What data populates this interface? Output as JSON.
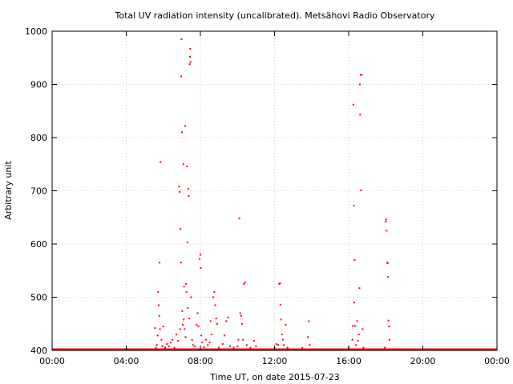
{
  "chart_data": {
    "type": "scatter",
    "title": "Total UV radiation intensity (uncalibrated). Metsähovi Radio Observatory",
    "xlabel": "Time UT, on date 2015-07-23",
    "ylabel": "Arbitrary unit",
    "xlim": [
      "00:00",
      "24:00"
    ],
    "ylim": [
      400,
      1000
    ],
    "x_ticks": [
      "00:00",
      "04:00",
      "08:00",
      "12:00",
      "16:00",
      "20:00",
      "00:00"
    ],
    "y_ticks": [
      "400",
      "500",
      "600",
      "700",
      "800",
      "900",
      "1000"
    ],
    "grid": true,
    "marker_color": "#ff0000",
    "x_unit": "hours UT",
    "baseline": {
      "value": 400,
      "from_hour": 0,
      "to_hour": 24
    },
    "points": [
      [
        5.55,
        442
      ],
      [
        5.6,
        405
      ],
      [
        5.65,
        410
      ],
      [
        5.7,
        428
      ],
      [
        5.72,
        510
      ],
      [
        5.75,
        485
      ],
      [
        5.78,
        465
      ],
      [
        5.8,
        565
      ],
      [
        5.82,
        440
      ],
      [
        5.85,
        754
      ],
      [
        5.9,
        420
      ],
      [
        5.95,
        408
      ],
      [
        6.0,
        445
      ],
      [
        6.1,
        405
      ],
      [
        6.2,
        412
      ],
      [
        6.3,
        408
      ],
      [
        6.4,
        415
      ],
      [
        6.5,
        420
      ],
      [
        6.6,
        405
      ],
      [
        6.7,
        430
      ],
      [
        6.8,
        418
      ],
      [
        6.85,
        708
      ],
      [
        6.88,
        698
      ],
      [
        6.9,
        440
      ],
      [
        6.92,
        628
      ],
      [
        6.95,
        565
      ],
      [
        6.97,
        915
      ],
      [
        6.98,
        985
      ],
      [
        7.0,
        810
      ],
      [
        7.02,
        474
      ],
      [
        7.05,
        448
      ],
      [
        7.08,
        750
      ],
      [
        7.1,
        458
      ],
      [
        7.12,
        520
      ],
      [
        7.15,
        440
      ],
      [
        7.18,
        822
      ],
      [
        7.2,
        425
      ],
      [
        7.22,
        525
      ],
      [
        7.25,
        510
      ],
      [
        7.28,
        746
      ],
      [
        7.3,
        603
      ],
      [
        7.32,
        480
      ],
      [
        7.35,
        704
      ],
      [
        7.37,
        690
      ],
      [
        7.4,
        460
      ],
      [
        7.42,
        938
      ],
      [
        7.44,
        952
      ],
      [
        7.45,
        967
      ],
      [
        7.47,
        942
      ],
      [
        7.5,
        500
      ],
      [
        7.55,
        420
      ],
      [
        7.6,
        410
      ],
      [
        7.7,
        408
      ],
      [
        7.8,
        448
      ],
      [
        7.85,
        470
      ],
      [
        7.9,
        445
      ],
      [
        7.95,
        572
      ],
      [
        8.0,
        580
      ],
      [
        8.02,
        555
      ],
      [
        8.05,
        428
      ],
      [
        8.1,
        415
      ],
      [
        8.2,
        406
      ],
      [
        8.3,
        420
      ],
      [
        8.4,
        410
      ],
      [
        8.5,
        415
      ],
      [
        8.55,
        455
      ],
      [
        8.6,
        430
      ],
      [
        8.7,
        500
      ],
      [
        8.75,
        510
      ],
      [
        8.8,
        485
      ],
      [
        8.85,
        460
      ],
      [
        8.9,
        450
      ],
      [
        9.0,
        405
      ],
      [
        9.2,
        412
      ],
      [
        9.3,
        428
      ],
      [
        9.4,
        455
      ],
      [
        9.5,
        462
      ],
      [
        9.6,
        408
      ],
      [
        9.8,
        405
      ],
      [
        10.0,
        408
      ],
      [
        10.05,
        420
      ],
      [
        10.1,
        648
      ],
      [
        10.15,
        470
      ],
      [
        10.2,
        465
      ],
      [
        10.25,
        450
      ],
      [
        10.3,
        420
      ],
      [
        10.35,
        525
      ],
      [
        10.4,
        528
      ],
      [
        10.5,
        410
      ],
      [
        10.7,
        405
      ],
      [
        10.9,
        418
      ],
      [
        11.0,
        408
      ],
      [
        12.0,
        405
      ],
      [
        12.1,
        412
      ],
      [
        12.2,
        410
      ],
      [
        12.25,
        525
      ],
      [
        12.3,
        526
      ],
      [
        12.32,
        486
      ],
      [
        12.35,
        458
      ],
      [
        12.4,
        430
      ],
      [
        12.45,
        420
      ],
      [
        12.5,
        410
      ],
      [
        12.6,
        448
      ],
      [
        12.7,
        405
      ],
      [
        13.5,
        405
      ],
      [
        13.8,
        425
      ],
      [
        13.85,
        455
      ],
      [
        13.9,
        410
      ],
      [
        16.0,
        405
      ],
      [
        16.2,
        420
      ],
      [
        16.22,
        446
      ],
      [
        16.25,
        862
      ],
      [
        16.28,
        672
      ],
      [
        16.3,
        490
      ],
      [
        16.32,
        570
      ],
      [
        16.35,
        446
      ],
      [
        16.4,
        410
      ],
      [
        16.45,
        455
      ],
      [
        16.5,
        418
      ],
      [
        16.55,
        430
      ],
      [
        16.58,
        517
      ],
      [
        16.6,
        900
      ],
      [
        16.62,
        843
      ],
      [
        16.65,
        918
      ],
      [
        16.67,
        701
      ],
      [
        16.7,
        918
      ],
      [
        16.75,
        440
      ],
      [
        16.8,
        405
      ],
      [
        17.95,
        405
      ],
      [
        18.0,
        642
      ],
      [
        18.02,
        646
      ],
      [
        18.05,
        625
      ],
      [
        18.08,
        565
      ],
      [
        18.1,
        564
      ],
      [
        18.12,
        538
      ],
      [
        18.15,
        456
      ],
      [
        18.18,
        445
      ],
      [
        18.2,
        420
      ]
    ]
  }
}
